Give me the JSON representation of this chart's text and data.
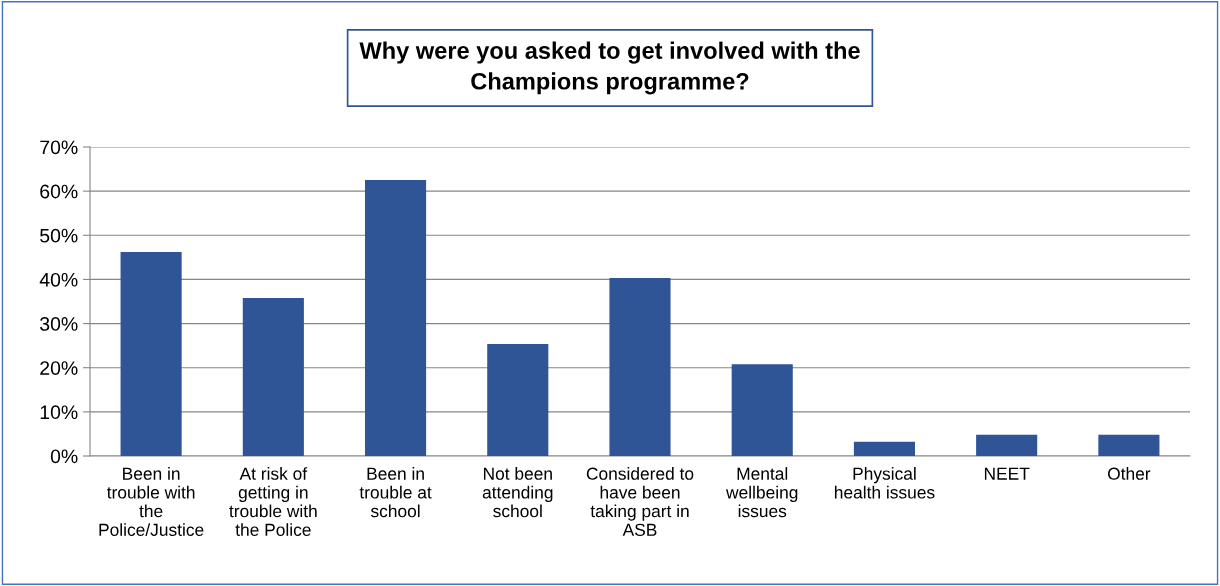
{
  "chart_data": {
    "type": "bar",
    "title": "Why were you asked to get involved with the Champions programme?",
    "categories": [
      "Been in trouble with the Police/Justice",
      "At risk of getting in trouble with the Police",
      "Been in trouble at school",
      "Not been attending school",
      "Considered to have been taking part in ASB",
      "Mental wellbeing issues",
      "Physical health issues",
      "NEET",
      "Other"
    ],
    "values": [
      46.2,
      35.8,
      62.5,
      25.4,
      40.3,
      20.8,
      3.2,
      4.8,
      4.8
    ],
    "color": "#2f5597",
    "ylim": [
      0,
      70
    ],
    "yticks": [
      {
        "value": 0,
        "label": "0%"
      },
      {
        "value": 10,
        "label": "10%"
      },
      {
        "value": 20,
        "label": "20%"
      },
      {
        "value": 30,
        "label": "30%"
      },
      {
        "value": 40,
        "label": "40%"
      },
      {
        "value": 50,
        "label": "50%"
      },
      {
        "value": 60,
        "label": "60%"
      },
      {
        "value": 70,
        "label": "70%"
      }
    ],
    "grid": "y"
  }
}
